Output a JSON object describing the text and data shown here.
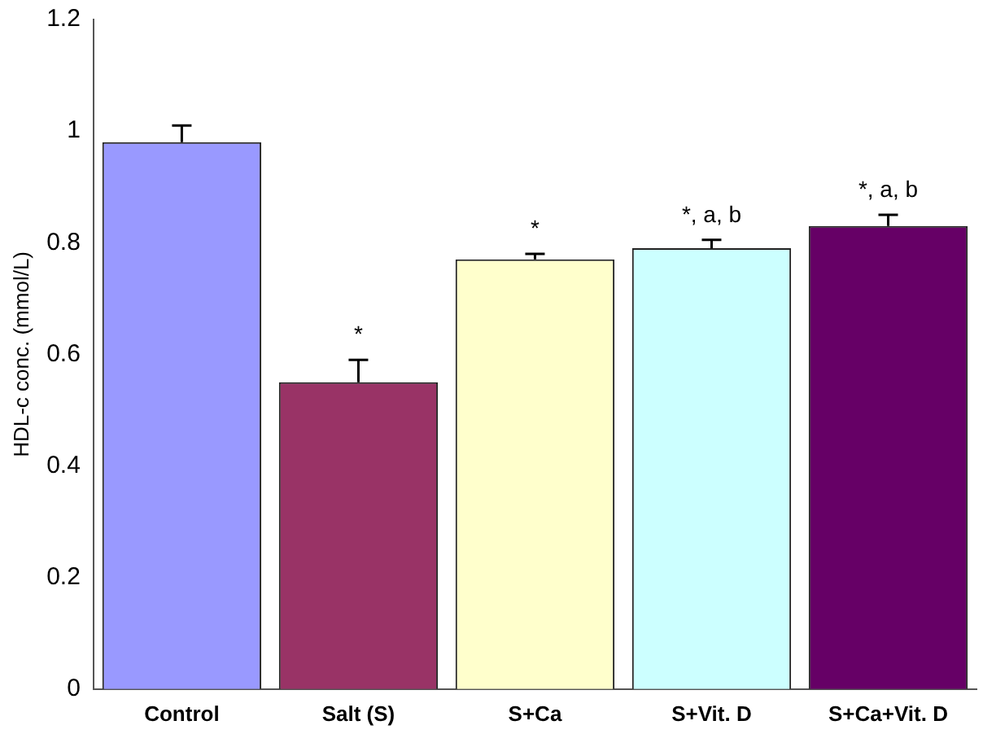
{
  "chart_data": {
    "type": "bar",
    "ylabel": "HDL-c conc. (mmol/L)",
    "categories": [
      "Control",
      "Salt (S)",
      "S+Ca",
      "S+Vit. D",
      "S+Ca+Vit. D"
    ],
    "values": [
      0.98,
      0.55,
      0.77,
      0.79,
      0.83
    ],
    "errors": [
      0.03,
      0.04,
      0.01,
      0.015,
      0.02
    ],
    "colors": [
      "#9999ff",
      "#993366",
      "#ffffcc",
      "#ccffff",
      "#660066"
    ],
    "ylim": [
      0,
      1.2
    ],
    "yticks": [
      0,
      0.2,
      0.4,
      0.6,
      0.8,
      1,
      1.2
    ],
    "grid": false,
    "legend": false,
    "annotations": [
      {
        "text": "*",
        "x": "Salt (S)",
        "y": 0.55
      },
      {
        "text": "*",
        "x": "S+Ca",
        "y": 0.77
      },
      {
        "text": "*, a, b",
        "x": "S+Vit. D",
        "y": 0.79
      },
      {
        "text": "*, a, b",
        "x": "S+Ca+Vit. D",
        "y": 0.83
      }
    ]
  }
}
